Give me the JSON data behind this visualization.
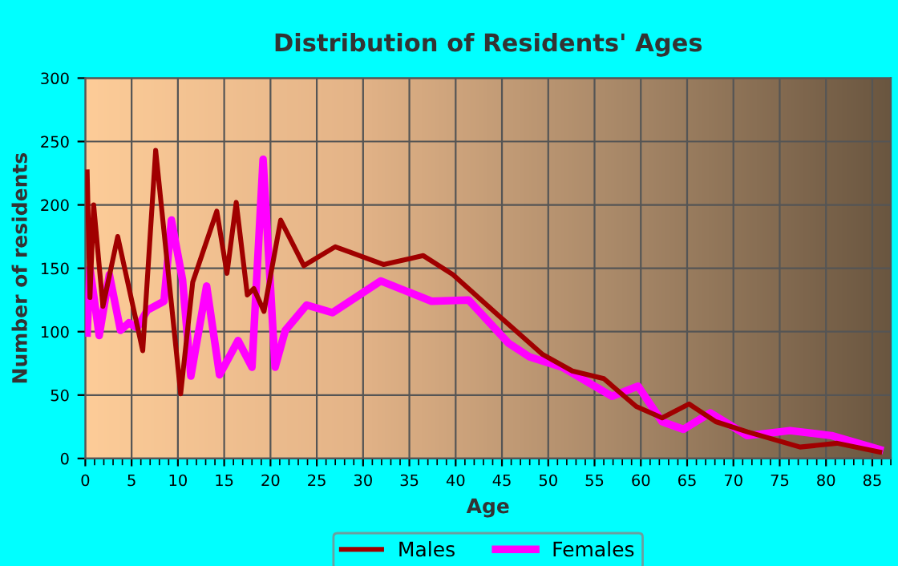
{
  "chart_data": {
    "type": "line",
    "title": "Distribution of Residents' Ages",
    "xlabel": "Age",
    "ylabel": "Number of residents",
    "xlim": [
      0,
      87
    ],
    "xticks": [
      0,
      5,
      10,
      15,
      20,
      25,
      30,
      35,
      40,
      45,
      50,
      55,
      60,
      65,
      70,
      75,
      80,
      85
    ],
    "ylim": [
      0,
      300
    ],
    "yticks": [
      0,
      50,
      100,
      150,
      200,
      250,
      300
    ],
    "grid": true,
    "legend": "bottom",
    "series": [
      {
        "name": "Males",
        "color": "#a00000",
        "x": [
          0.2,
          0.5,
          0.9,
          1.9,
          3.5,
          6.2,
          7.6,
          10.3,
          11.6,
          14.2,
          15.3,
          16.3,
          17.5,
          18.2,
          19.3,
          21.1,
          23.6,
          27,
          28.5,
          32.2,
          36.5,
          39.7,
          44.6,
          49.4,
          52.6,
          56,
          59.5,
          62.3,
          65.2,
          68.1,
          71.5,
          77.2,
          81.2,
          85.8
        ],
        "values": [
          226,
          127,
          200,
          120,
          175,
          85,
          243,
          51,
          139,
          195,
          146,
          202,
          129,
          134,
          116,
          188,
          152,
          167,
          163,
          153,
          160,
          145,
          113,
          82,
          69,
          63,
          41,
          32,
          43,
          29,
          21,
          9,
          12,
          5
        ]
      },
      {
        "name": "Females",
        "color": "#ff00ff",
        "x": [
          0.2,
          0.5,
          1.5,
          2.6,
          3.8,
          4.7,
          5.6,
          6.7,
          8.5,
          9.3,
          10.5,
          11.4,
          13.1,
          14.5,
          16.5,
          18,
          19.2,
          20.5,
          21.6,
          23.9,
          26.7,
          31.9,
          37.4,
          41.4,
          45.7,
          48,
          51.5,
          56.9,
          59.7,
          62.3,
          64.6,
          67.5,
          71.5,
          76.1,
          80.6,
          85.8
        ],
        "values": [
          99,
          150,
          97,
          145,
          101,
          107,
          103,
          117,
          124,
          188,
          141,
          65,
          136,
          66,
          93,
          72,
          236,
          72,
          101,
          121,
          115,
          140,
          124,
          125,
          91,
          80,
          72,
          49,
          57,
          29,
          23,
          36,
          18,
          22,
          18,
          7
        ]
      }
    ]
  }
}
